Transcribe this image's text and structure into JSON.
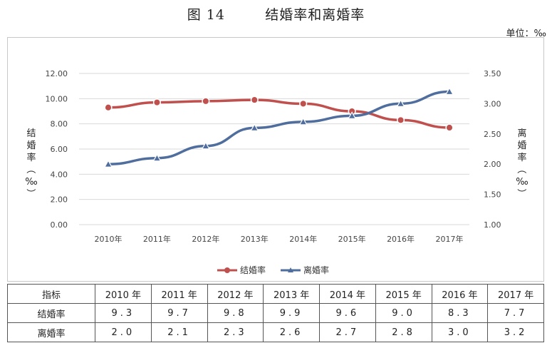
{
  "figure": {
    "title": "图 14        结婚率和离婚率",
    "unit": "单位：‰"
  },
  "chart_data": {
    "type": "line",
    "categories": [
      "2010年",
      "2011年",
      "2012年",
      "2013年",
      "2014年",
      "2015年",
      "2016年",
      "2017年"
    ],
    "series": [
      {
        "name": "结婚率",
        "axis": "left",
        "color": "#c0504d",
        "marker": "circle",
        "values": [
          9.3,
          9.7,
          9.8,
          9.9,
          9.6,
          9.0,
          8.3,
          7.7
        ]
      },
      {
        "name": "离婚率",
        "axis": "right",
        "color": "#4f6e9e",
        "marker": "triangle",
        "values": [
          2.0,
          2.1,
          2.3,
          2.6,
          2.7,
          2.8,
          3.0,
          3.2
        ]
      }
    ],
    "y_left": {
      "label": "结婚率（‰）",
      "ylim": [
        0,
        12
      ],
      "ticks": [
        "0.00",
        "2.00",
        "4.00",
        "6.00",
        "8.00",
        "10.00",
        "12.00"
      ]
    },
    "y_right": {
      "label": "离婚率（‰）",
      "ylim": [
        1,
        3.5
      ],
      "ticks": [
        "1.00",
        "1.50",
        "2.00",
        "2.50",
        "3.00",
        "3.50"
      ]
    },
    "grid": true,
    "legend": "bottom"
  },
  "table": {
    "header": [
      "指标",
      "2010 年",
      "2011 年",
      "2012 年",
      "2013 年",
      "2014 年",
      "2015 年",
      "2016 年",
      "2017 年"
    ],
    "rows": [
      {
        "label": "结婚率",
        "cells": [
          "9.3",
          "9.7",
          "9.8",
          "9.9",
          "9.6",
          "9.0",
          "8.3",
          "7.7"
        ]
      },
      {
        "label": "离婚率",
        "cells": [
          "2.0",
          "2.1",
          "2.3",
          "2.6",
          "2.7",
          "2.8",
          "3.0",
          "3.2"
        ]
      }
    ]
  }
}
